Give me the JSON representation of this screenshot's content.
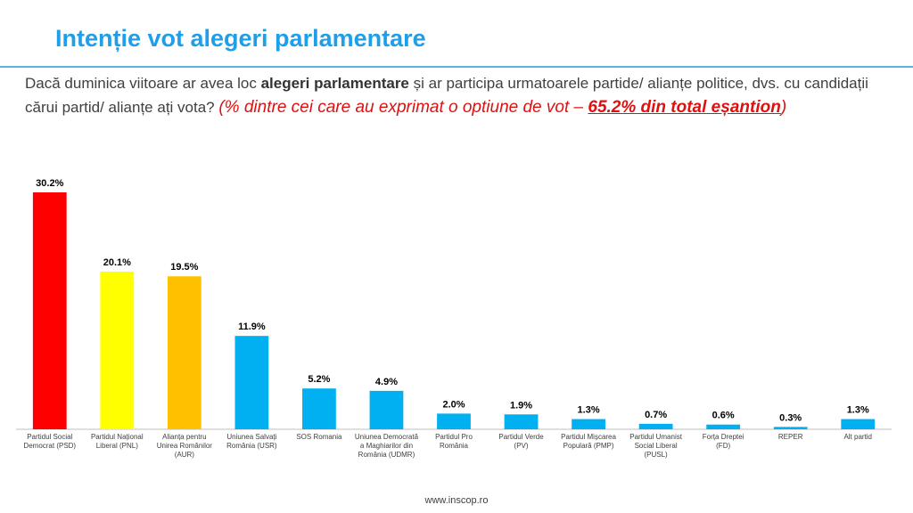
{
  "header": {
    "title": "Intenție vot alegeri parlamentare"
  },
  "question": {
    "part1": "Dacă duminica viitoare ar avea loc ",
    "bold": "alegeri parlamentare",
    "part2": " și ar participa urmatoarele partide/ alianțe politice, dvs. cu candidații cărui partid/ alianțe ați vota?",
    "note_prefix": "(% dintre cei care au exprimat o optiune de vot – ",
    "note_underlined": "65.2% din total eșantion",
    "note_suffix": ")"
  },
  "footer": {
    "url": "www.inscop.ro"
  },
  "colors": {
    "title": "#1e9fe8",
    "note": "#e01010",
    "psd": "#ff0000",
    "pnl": "#ffff00",
    "aur": "#ffc000",
    "other": "#00b0f0"
  },
  "chart_data": {
    "type": "bar",
    "categories": [
      "Partidul Social Democrat (PSD)",
      "Partidul Național Liberal (PNL)",
      "Alianța pentru Unirea Românilor (AUR)",
      "Uniunea Salvați România (USR)",
      "SOS Romania",
      "Uniunea Democrată a Maghiarilor din România (UDMR)",
      "Partidul Pro România",
      "Partidul Verde (PV)",
      "Partidul Mișcarea Populară (PMP)",
      "Partidul Umanist Social Liberal (PUSL)",
      "Forța Dreptei (FD)",
      "REPER",
      "Alt partid"
    ],
    "values": [
      30.2,
      20.1,
      19.5,
      11.9,
      5.2,
      4.9,
      2.0,
      1.9,
      1.3,
      0.7,
      0.6,
      0.3,
      1.3
    ],
    "data_labels": [
      "30.2%",
      "20.1%",
      "19.5%",
      "11.9%",
      "5.2%",
      "4.9%",
      "2.0%",
      "1.9%",
      "1.3%",
      "0.7%",
      "0.6%",
      "0.3%",
      "1.3%"
    ],
    "bar_colors": [
      "#ff0000",
      "#ffff00",
      "#ffc000",
      "#00b0f0",
      "#00b0f0",
      "#00b0f0",
      "#00b0f0",
      "#00b0f0",
      "#00b0f0",
      "#00b0f0",
      "#00b0f0",
      "#00b0f0",
      "#00b0f0"
    ],
    "ylim": [
      0,
      30.2
    ],
    "grid": false,
    "legend": "none"
  }
}
